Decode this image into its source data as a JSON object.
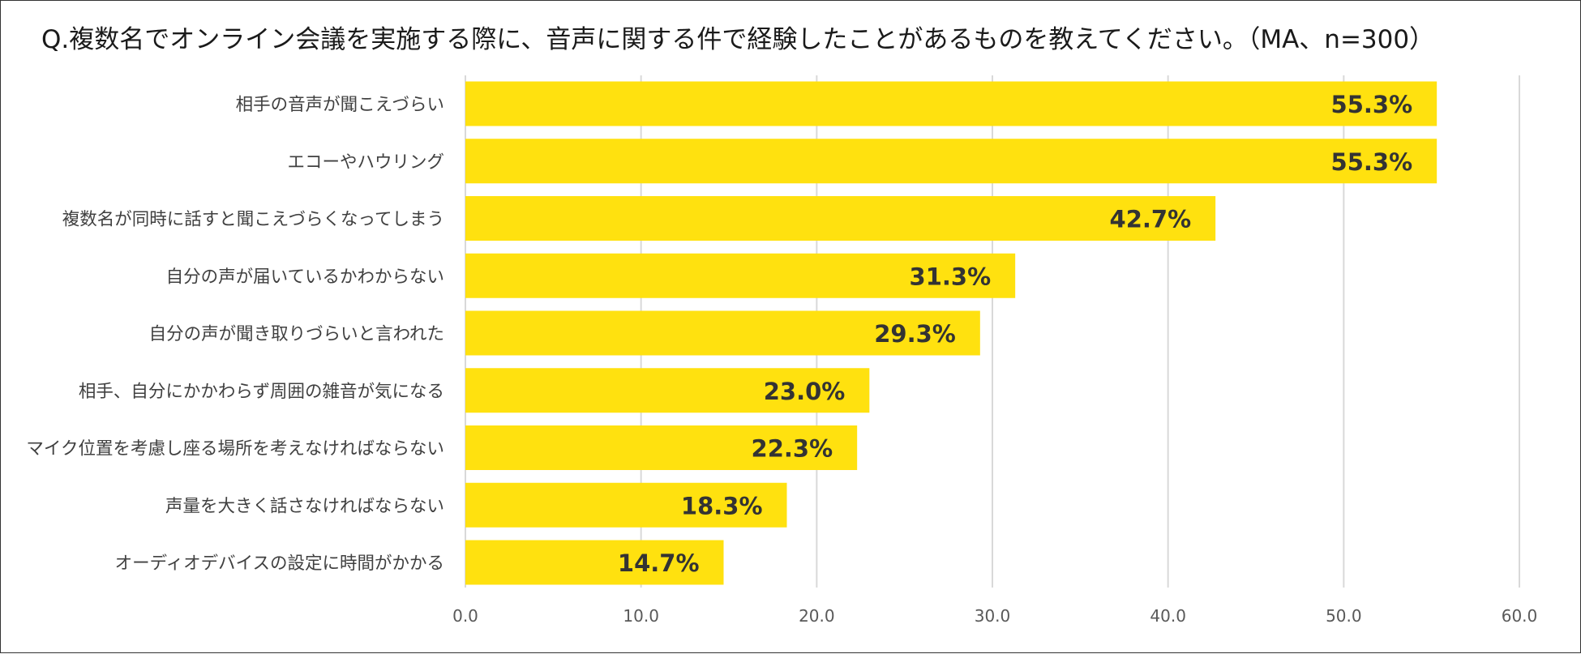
{
  "chart_data": {
    "type": "bar",
    "orientation": "horizontal",
    "title": "Q.複数名でオンライン会議を実施する際に、音声に関する件で経験したことがあるものを教えてください。（MA、n=300）",
    "categories": [
      "相手の音声が聞こえづらい",
      "エコーやハウリング",
      "複数名が同時に話すと聞こえづらくなってしまう",
      "自分の声が届いているかわからない",
      "自分の声が聞き取りづらいと言われた",
      "相手、自分にかかわらず周囲の雑音が気になる",
      "マイク位置を考慮し座る場所を考えなければならない",
      "声量を大きく話さなければならない",
      "オーディオデバイスの設定に時間がかかる"
    ],
    "values": [
      55.3,
      55.3,
      42.7,
      31.3,
      29.3,
      23.0,
      22.3,
      18.3,
      14.7
    ],
    "value_labels": [
      "55.3%",
      "55.3%",
      "42.7%",
      "31.3%",
      "29.3%",
      "23.0%",
      "22.3%",
      "18.3%",
      "14.7%"
    ],
    "xlim": [
      0,
      60
    ],
    "xticks": [
      "0.0",
      "10.0",
      "20.0",
      "30.0",
      "40.0",
      "50.0",
      "60.0"
    ],
    "xlabel": "",
    "ylabel": "",
    "grid": true,
    "bar_color": "#FFE10F",
    "grid_color": "#D9D9D9"
  }
}
